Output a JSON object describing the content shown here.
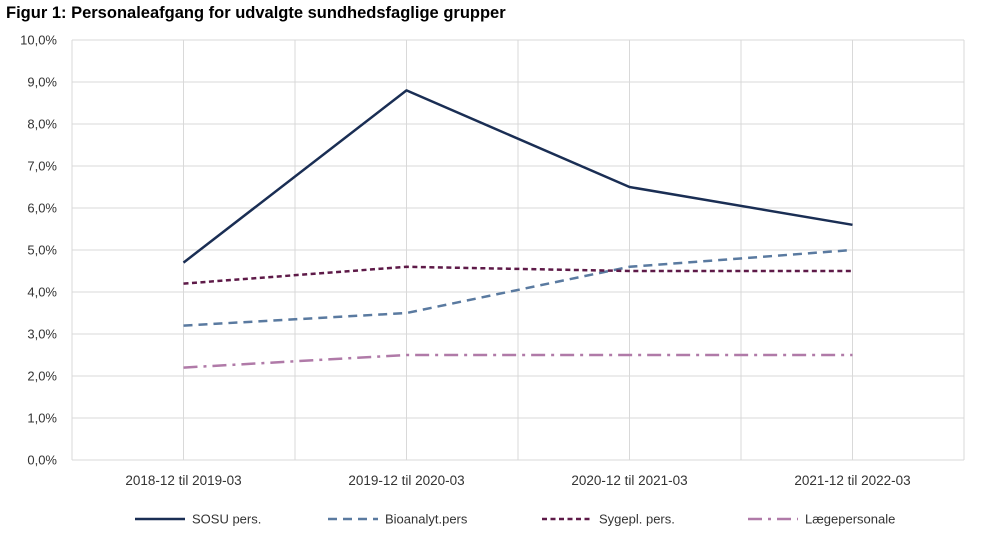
{
  "chart_data": {
    "type": "line",
    "title": "Figur 1: Personaleafgang for udvalgte sundhedsfaglige grupper",
    "xlabel": "",
    "ylabel": "",
    "categories": [
      "2018-12 til 2019-03",
      "2019-12 til 2020-03",
      "2020-12 til 2021-03",
      "2021-12 til 2022-03"
    ],
    "ylim": [
      0,
      10
    ],
    "yticks": [
      "0,0%",
      "1,0%",
      "2,0%",
      "3,0%",
      "4,0%",
      "5,0%",
      "6,0%",
      "7,0%",
      "8,0%",
      "9,0%",
      "10,0%"
    ],
    "grid": true,
    "legend_position": "bottom",
    "series": [
      {
        "name": "SOSU pers.",
        "values": [
          4.7,
          8.8,
          6.5,
          5.6
        ],
        "color": "#1a2e54",
        "dash": "solid"
      },
      {
        "name": "Bioanalyt.pers",
        "values": [
          3.2,
          3.5,
          4.6,
          5.0
        ],
        "color": "#5a7aa0",
        "dash": "dash"
      },
      {
        "name": "Sygepl. pers.",
        "values": [
          4.2,
          4.6,
          4.5,
          4.5
        ],
        "color": "#5e1a48",
        "dash": "shortdash"
      },
      {
        "name": "Lægepersonale",
        "values": [
          2.2,
          2.5,
          2.5,
          2.5
        ],
        "color": "#b07aa8",
        "dash": "dashdot"
      }
    ]
  }
}
